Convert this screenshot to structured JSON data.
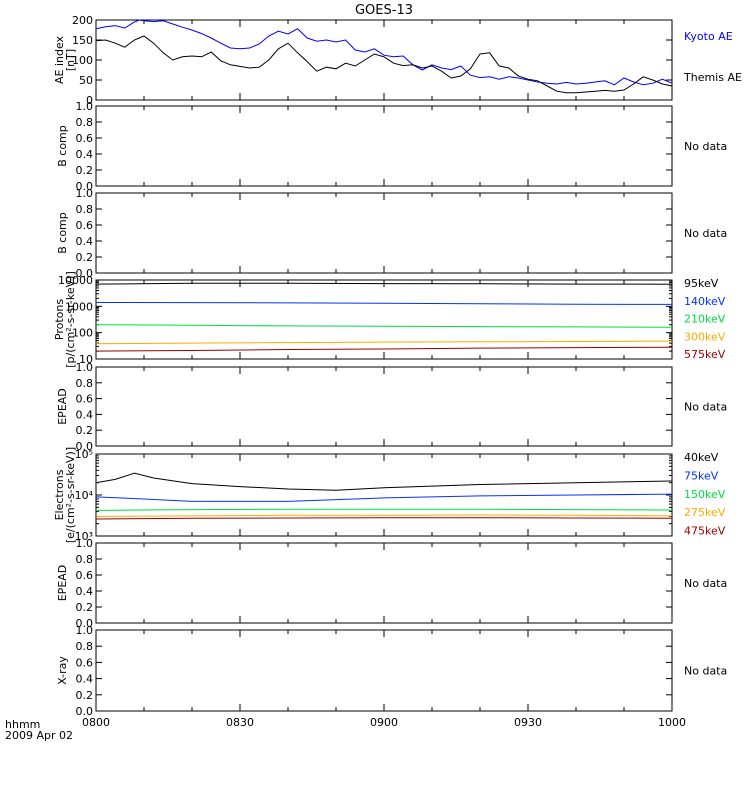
{
  "title": "GOES-13",
  "time_axis": {
    "ticks": [
      "0800",
      "0830",
      "0900",
      "0930",
      "1000"
    ],
    "label": "hhmm",
    "date": "2009 Apr 02"
  },
  "colors": {
    "axis": "#000000",
    "kyoto": "#0000ff",
    "themis": "#000000",
    "ch_dark_red": "#990000",
    "ch_orange": "#ffaa00",
    "ch_green": "#00dd44",
    "ch_blue": "#0033ff",
    "ch_black": "#000000"
  },
  "chart_data": [
    {
      "type": "line",
      "panel": "ae_index",
      "ylabel": "AE index [nT]",
      "ylim": [
        0,
        200
      ],
      "yticks": [
        "0",
        "50",
        "100",
        "150",
        "200"
      ],
      "x_range_minutes": [
        0,
        120
      ],
      "series": [
        {
          "name": "Kyoto AE",
          "color": "#0000ff",
          "x": [
            0,
            2,
            4,
            6,
            8,
            9,
            10,
            12,
            14,
            16,
            18,
            20,
            22,
            24,
            26,
            28,
            30,
            32,
            34,
            36,
            38,
            40,
            42,
            44,
            46,
            48,
            50,
            52,
            54,
            56,
            58,
            60,
            62,
            64,
            66,
            68,
            70,
            72,
            74,
            76,
            78,
            80,
            82,
            84,
            86,
            88,
            90,
            92,
            94,
            96,
            98,
            100,
            102,
            104,
            106,
            108,
            110,
            112,
            114,
            116,
            118,
            120
          ],
          "y": [
            178,
            183,
            186,
            180,
            195,
            200,
            198,
            196,
            198,
            190,
            182,
            175,
            166,
            155,
            142,
            130,
            128,
            130,
            140,
            160,
            172,
            165,
            178,
            155,
            147,
            150,
            145,
            150,
            125,
            120,
            128,
            112,
            108,
            110,
            88,
            75,
            88,
            80,
            76,
            85,
            62,
            56,
            58,
            52,
            58,
            55,
            50,
            45,
            42,
            40,
            44,
            40,
            42,
            45,
            48,
            38,
            55,
            45,
            38,
            42,
            52,
            42
          ]
        },
        {
          "name": "Themis AE",
          "color": "#000000",
          "x": [
            0,
            2,
            4,
            6,
            8,
            10,
            12,
            14,
            16,
            18,
            20,
            22,
            24,
            26,
            28,
            30,
            32,
            34,
            36,
            38,
            40,
            42,
            44,
            46,
            48,
            50,
            52,
            54,
            56,
            58,
            60,
            62,
            64,
            66,
            68,
            70,
            72,
            74,
            76,
            78,
            80,
            82,
            84,
            86,
            88,
            90,
            92,
            94,
            96,
            98,
            100,
            102,
            104,
            106,
            108,
            110,
            112,
            114,
            116,
            118,
            120
          ],
          "y": [
            148,
            150,
            142,
            132,
            150,
            160,
            142,
            118,
            100,
            108,
            110,
            108,
            120,
            98,
            88,
            84,
            80,
            82,
            100,
            128,
            142,
            118,
            96,
            72,
            82,
            78,
            92,
            85,
            100,
            115,
            108,
            92,
            86,
            88,
            80,
            85,
            72,
            55,
            60,
            78,
            115,
            118,
            85,
            80,
            60,
            52,
            48,
            35,
            22,
            18,
            18,
            20,
            22,
            24,
            22,
            25,
            40,
            58,
            50,
            40,
            35
          ]
        }
      ]
    },
    {
      "type": "line",
      "panel": "b_comp_1",
      "ylabel": "B comp",
      "ylim": [
        0,
        1
      ],
      "yticks": [
        "0.0",
        "0.2",
        "0.4",
        "0.6",
        "0.8",
        "1.0"
      ],
      "note": "No data",
      "series": []
    },
    {
      "type": "line",
      "panel": "b_comp_2",
      "ylabel": "B comp",
      "ylim": [
        0,
        1
      ],
      "yticks": [
        "0.0",
        "0.2",
        "0.4",
        "0.6",
        "0.8",
        "1.0"
      ],
      "note": "No data",
      "series": []
    },
    {
      "type": "line",
      "panel": "protons",
      "ylabel": "Protons [p/(cm²-s-sr-keV)]",
      "yscale": "log",
      "ylim": [
        10,
        10000
      ],
      "yticks": [
        "10",
        "100",
        "1000",
        "10000"
      ],
      "series": [
        {
          "name": "575keV",
          "color": "#990000",
          "x": [
            0,
            20,
            40,
            60,
            80,
            100,
            120
          ],
          "y": [
            20,
            21,
            23,
            24,
            26,
            27,
            28
          ]
        },
        {
          "name": "300keV",
          "color": "#ffaa00",
          "x": [
            0,
            20,
            40,
            60,
            80,
            100,
            120
          ],
          "y": [
            38,
            40,
            42,
            44,
            45,
            46,
            48
          ]
        },
        {
          "name": "210keV",
          "color": "#00dd44",
          "x": [
            0,
            20,
            40,
            60,
            80,
            100,
            120
          ],
          "y": [
            200,
            190,
            180,
            175,
            170,
            165,
            160
          ]
        },
        {
          "name": "140keV",
          "color": "#0033ff",
          "x": [
            0,
            20,
            40,
            60,
            80,
            100,
            120
          ],
          "y": [
            1400,
            1380,
            1350,
            1300,
            1250,
            1200,
            1180
          ]
        },
        {
          "name": "95keV",
          "color": "#000000",
          "x": [
            0,
            20,
            40,
            60,
            80,
            100,
            120
          ],
          "y": [
            7000,
            7500,
            7500,
            7300,
            7200,
            7000,
            6900
          ]
        }
      ]
    },
    {
      "type": "line",
      "panel": "epead_1",
      "ylabel": "EPEAD",
      "ylim": [
        0,
        1
      ],
      "yticks": [
        "0.0",
        "0.2",
        "0.4",
        "0.6",
        "0.8",
        "1.0"
      ],
      "note": "No data",
      "series": []
    },
    {
      "type": "line",
      "panel": "electrons",
      "ylabel": "Electrons [e/(cm²-s-sr-keV)]",
      "yscale": "log",
      "ylim": [
        1000,
        100000
      ],
      "yticks": [
        "10³",
        "10⁴",
        "10⁵"
      ],
      "series": [
        {
          "name": "475keV",
          "color": "#990000",
          "x": [
            0,
            20,
            40,
            60,
            80,
            100,
            120
          ],
          "y": [
            2600,
            2700,
            2750,
            2800,
            2800,
            2750,
            2700
          ]
        },
        {
          "name": "275keV",
          "color": "#ffaa00",
          "x": [
            0,
            20,
            40,
            60,
            80,
            100,
            120
          ],
          "y": [
            3000,
            3100,
            3200,
            3200,
            3250,
            3200,
            3100
          ]
        },
        {
          "name": "150keV",
          "color": "#00dd44",
          "x": [
            0,
            20,
            40,
            60,
            80,
            100,
            120
          ],
          "y": [
            4200,
            4400,
            4500,
            4500,
            4500,
            4400,
            4300
          ]
        },
        {
          "name": "75keV",
          "color": "#0033ff",
          "x": [
            0,
            10,
            20,
            40,
            60,
            80,
            100,
            120
          ],
          "y": [
            9000,
            8000,
            7000,
            7000,
            8500,
            9500,
            10000,
            10500
          ]
        },
        {
          "name": "40keV",
          "color": "#000000",
          "x": [
            0,
            4,
            8,
            12,
            20,
            30,
            40,
            50,
            60,
            80,
            100,
            120
          ],
          "y": [
            20000,
            24000,
            34000,
            26000,
            19000,
            16000,
            14000,
            13000,
            15000,
            18000,
            20000,
            22000
          ]
        }
      ]
    },
    {
      "type": "line",
      "panel": "epead_2",
      "ylabel": "EPEAD",
      "ylim": [
        0,
        1
      ],
      "yticks": [
        "0.0",
        "0.2",
        "0.4",
        "0.6",
        "0.8",
        "1.0"
      ],
      "note": "No data",
      "series": []
    },
    {
      "type": "line",
      "panel": "xray",
      "ylabel": "X-ray",
      "ylim": [
        0,
        1
      ],
      "yticks": [
        "0.0",
        "0.2",
        "0.4",
        "0.6",
        "0.8",
        "1.0"
      ],
      "note": "No data",
      "series": []
    }
  ]
}
